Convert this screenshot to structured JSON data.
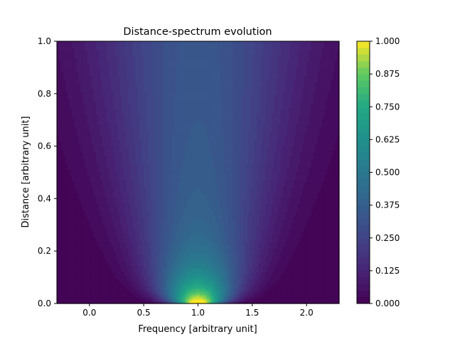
{
  "chart_data": {
    "type": "heatmap",
    "title": "Distance-spectrum evolution",
    "xlabel": "Frequency [arbitrary unit]",
    "ylabel": "Distance [arbitrary unit]",
    "xlim": [
      -0.3,
      2.3
    ],
    "ylim": [
      0.0,
      1.0
    ],
    "x_ticks": [
      0.0,
      0.5,
      1.0,
      1.5,
      2.0
    ],
    "x_tick_labels": [
      "0.0",
      "0.5",
      "1.0",
      "1.5",
      "2.0"
    ],
    "y_ticks": [
      0.0,
      0.2,
      0.4,
      0.6,
      0.8,
      1.0
    ],
    "y_tick_labels": [
      "0.0",
      "0.2",
      "0.4",
      "0.6",
      "0.8",
      "1.0"
    ],
    "colormap": "viridis",
    "colorbar": {
      "range": [
        0.0,
        1.0
      ],
      "ticks": [
        0.0,
        0.125,
        0.25,
        0.375,
        0.5,
        0.625,
        0.75,
        0.875,
        1.0
      ],
      "tick_labels": [
        "0.000",
        "0.125",
        "0.250",
        "0.375",
        "0.500",
        "0.625",
        "0.750",
        "0.875",
        "1.000"
      ],
      "levels": 40
    },
    "field": {
      "peak_x": 1.0,
      "peak_value": 1.0,
      "central_profile": [
        {
          "distance": 0.0,
          "value": 1.0
        },
        {
          "distance": 0.1,
          "value": 0.85
        },
        {
          "distance": 0.2,
          "value": 0.6
        },
        {
          "distance": 0.4,
          "value": 0.45
        },
        {
          "distance": 0.6,
          "value": 0.4
        },
        {
          "distance": 0.8,
          "value": 0.37
        },
        {
          "distance": 1.0,
          "value": 0.32
        }
      ],
      "edge_value": 0.0
    },
    "grid": false
  }
}
